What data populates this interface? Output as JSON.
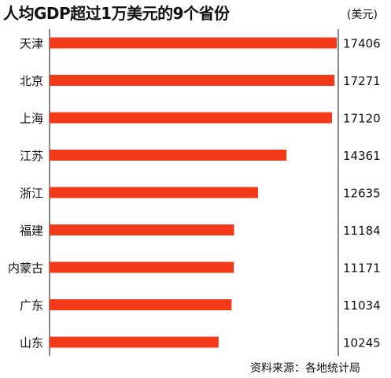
{
  "chart_data": {
    "type": "bar",
    "orientation": "horizontal",
    "title": "人均GDP超过1万美元的9个省份",
    "unit": "(美元)",
    "categories": [
      "天津",
      "北京",
      "上海",
      "江苏",
      "浙江",
      "福建",
      "内蒙古",
      "广东",
      "山东"
    ],
    "values": [
      17406,
      17271,
      17120,
      14361,
      12635,
      11184,
      11171,
      11034,
      10245
    ],
    "value_labels": [
      "17406",
      "17271",
      "17120",
      "14361",
      "12635",
      "11184",
      "11171",
      "11034",
      "10245"
    ],
    "source": "资料来源：各地统计局",
    "bar_color": "#f23a18",
    "xlim": [
      0,
      17406
    ]
  }
}
